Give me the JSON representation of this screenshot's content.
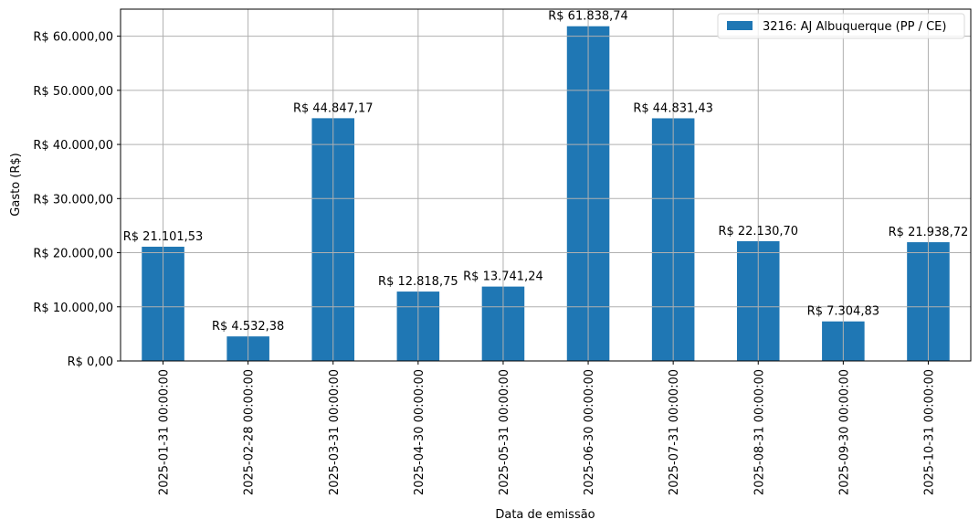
{
  "chart_data": {
    "type": "bar",
    "title": "",
    "xlabel": "Data de emissão",
    "ylabel": "Gasto (R$)",
    "ylim": [
      0,
      65000
    ],
    "grid": true,
    "legend_position": "upper right",
    "categories": [
      "2025-01-31 00:00:00",
      "2025-02-28 00:00:00",
      "2025-03-31 00:00:00",
      "2025-04-30 00:00:00",
      "2025-05-31 00:00:00",
      "2025-06-30 00:00:00",
      "2025-07-31 00:00:00",
      "2025-08-31 00:00:00",
      "2025-09-30 00:00:00",
      "2025-10-31 00:00:00"
    ],
    "series": [
      {
        "name": "3216: AJ Albuquerque (PP / CE)",
        "color": "#1f77b4",
        "values": [
          21101.53,
          4532.38,
          44847.17,
          12818.75,
          13741.24,
          61838.74,
          44831.43,
          22130.7,
          7304.83,
          21938.72
        ],
        "labels": [
          "R$ 21.101,53",
          "R$ 4.532,38",
          "R$ 44.847,17",
          "R$ 12.818,75",
          "R$ 13.741,24",
          "R$ 61.838,74",
          "R$ 44.831,43",
          "R$ 22.130,70",
          "R$ 7.304,83",
          "R$ 21.938,72"
        ]
      }
    ],
    "yticks": [
      0,
      10000,
      20000,
      30000,
      40000,
      50000,
      60000
    ],
    "ytick_labels": [
      "R$ 0,00",
      "R$ 10.000,00",
      "R$ 20.000,00",
      "R$ 30.000,00",
      "R$ 40.000,00",
      "R$ 50.000,00",
      "R$ 60.000,00"
    ]
  },
  "colors": {
    "bar": "#1f77b4",
    "grid": "#b0b0b0",
    "axis": "#000000"
  }
}
